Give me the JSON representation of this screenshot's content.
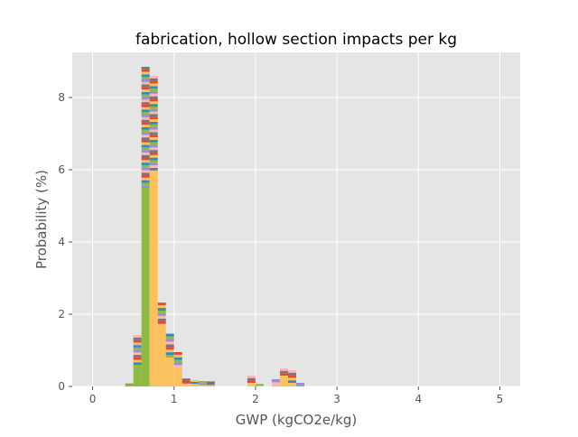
{
  "chart_data": {
    "type": "bar",
    "subtype": "stacked-histogram",
    "title": "fabrication, hollow section impacts per kg",
    "xlabel": "GWP (kgCO2e/kg)",
    "ylabel": "Probability (%)",
    "xlim": [
      -0.25,
      5.25
    ],
    "ylim": [
      0,
      9.25
    ],
    "xticks": [
      0,
      1,
      2,
      3,
      4,
      5
    ],
    "yticks": [
      0,
      2,
      4,
      6,
      8
    ],
    "grid": true,
    "legend": "none",
    "bin_width": 0.1,
    "bins": [
      {
        "x0": 0.4,
        "x1": 0.5,
        "total": 0.08,
        "base": 0.06,
        "base_series": "olive"
      },
      {
        "x0": 0.5,
        "x1": 0.6,
        "total": 1.42,
        "base": 0.6,
        "base_series": "olive"
      },
      {
        "x0": 0.6,
        "x1": 0.7,
        "total": 8.85,
        "base": 5.5,
        "base_series": "olive"
      },
      {
        "x0": 0.7,
        "x1": 0.8,
        "total": 8.6,
        "base": 5.98,
        "base_series": "orange"
      },
      {
        "x0": 0.8,
        "x1": 0.9,
        "total": 2.32,
        "base": 1.66,
        "base_series": "orange"
      },
      {
        "x0": 0.9,
        "x1": 1.0,
        "total": 1.46,
        "base": 0.8,
        "base_series": "orange"
      },
      {
        "x0": 1.0,
        "x1": 1.1,
        "total": 0.95,
        "base": 0.52,
        "base_series": "orange"
      },
      {
        "x0": 1.1,
        "x1": 1.2,
        "total": 0.22,
        "base": 0.08,
        "base_series": "orange"
      },
      {
        "x0": 1.2,
        "x1": 1.3,
        "total": 0.18,
        "base": 0.07,
        "base_series": "orange"
      },
      {
        "x0": 1.3,
        "x1": 1.4,
        "total": 0.15,
        "base": 0.04,
        "base_series": "orange"
      },
      {
        "x0": 1.4,
        "x1": 1.5,
        "total": 0.14,
        "base": 0.04,
        "base_series": "orange"
      },
      {
        "x0": 1.9,
        "x1": 2.0,
        "total": 0.3,
        "base": 0.03,
        "base_series": "orange"
      },
      {
        "x0": 2.0,
        "x1": 2.1,
        "total": 0.07,
        "base": 0.02,
        "base_series": "orange"
      },
      {
        "x0": 2.2,
        "x1": 2.3,
        "total": 0.2,
        "base": 0.03,
        "base_series": "orange"
      },
      {
        "x0": 2.3,
        "x1": 2.4,
        "total": 0.5,
        "base": 0.3,
        "base_series": "orange"
      },
      {
        "x0": 2.4,
        "x1": 2.5,
        "total": 0.45,
        "base": 0.1,
        "base_series": "orange"
      },
      {
        "x0": 2.5,
        "x1": 2.6,
        "total": 0.1,
        "base": 0.03,
        "base_series": "olive"
      }
    ],
    "colors": {
      "olive": "#8eba42",
      "orange": "#fbc15e",
      "cycle": [
        "#e24a33",
        "#348abd",
        "#988ed5",
        "#777777",
        "#fbc15e",
        "#8eba42",
        "#ffb5b8"
      ],
      "axes_bg": "#e5e5e5",
      "grid": "#ffffff",
      "text": "#555555",
      "title": "#000000"
    }
  }
}
